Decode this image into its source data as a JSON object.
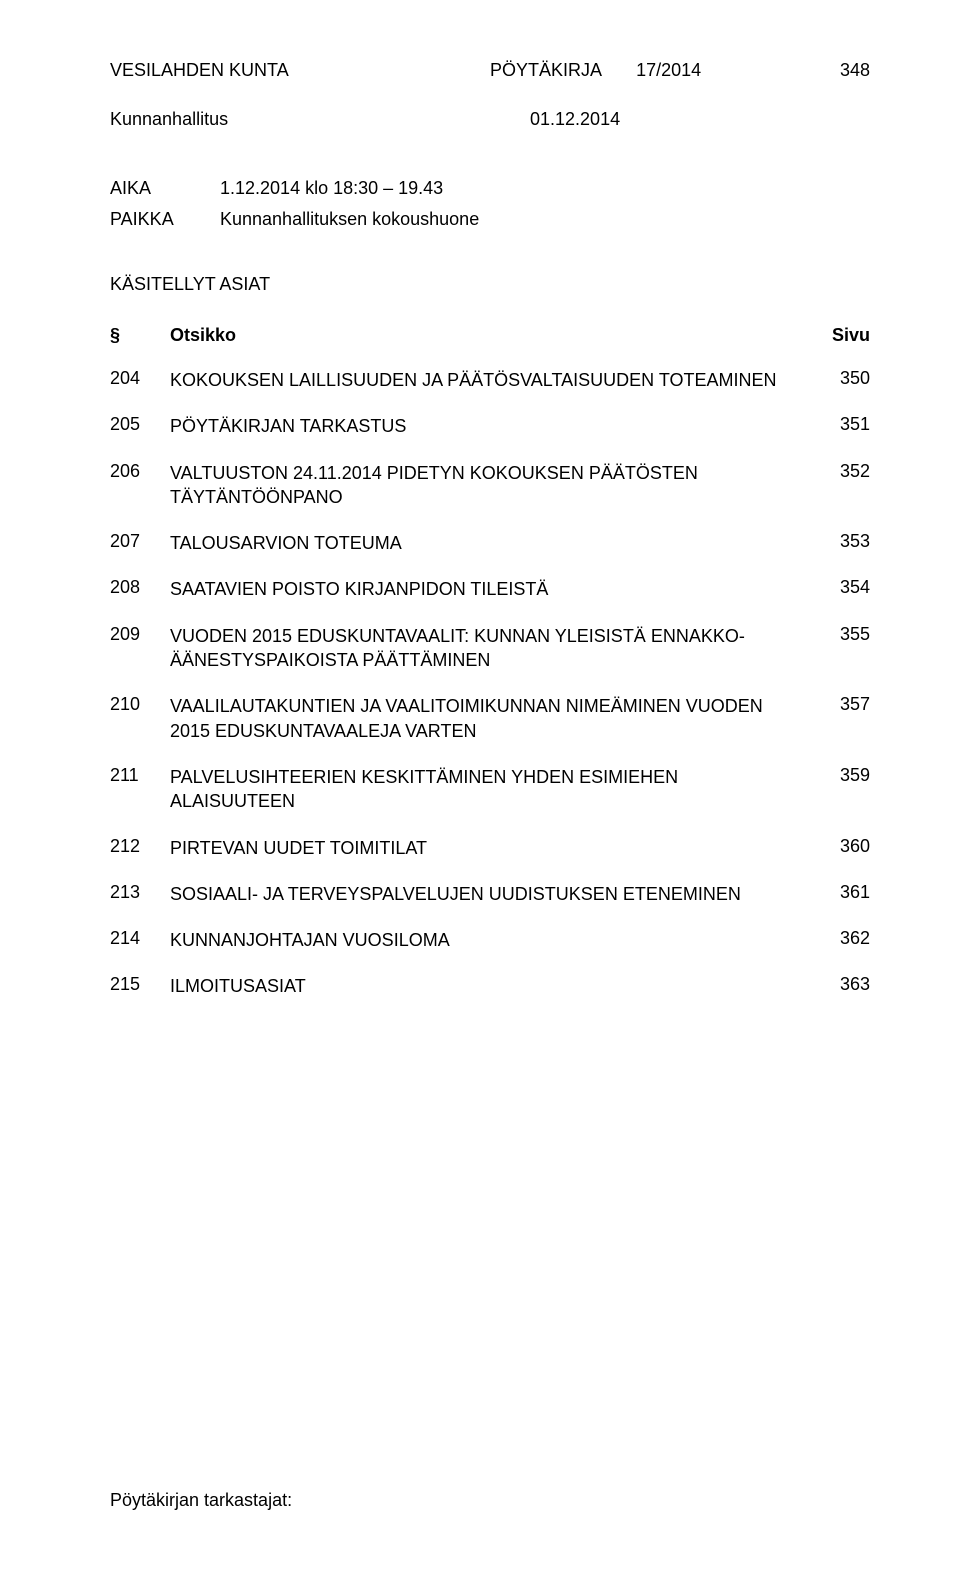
{
  "header": {
    "org": "VESILAHDEN KUNTA",
    "doc_type": "PÖYTÄKIRJA",
    "doc_number": "17/2014",
    "page_number": "348"
  },
  "sub_header": {
    "body": "Kunnanhallitus",
    "date": "01.12.2014"
  },
  "aika": {
    "label": "AIKA",
    "value": "1.12.2014 klo 18:30 – 19.43"
  },
  "paikka": {
    "label": "PAIKKA",
    "value": "Kunnanhallituksen kokoushuone"
  },
  "section_title": "KÄSITELLYT ASIAT",
  "columns": {
    "num": "§",
    "title": "Otsikko",
    "page": "Sivu"
  },
  "items": [
    {
      "num": "204",
      "title": "KOKOUKSEN LAILLISUUDEN JA PÄÄTÖSVALTAISUUDEN TOTEAMINEN",
      "page": "350"
    },
    {
      "num": "205",
      "title": "PÖYTÄKIRJAN TARKASTUS",
      "page": "351"
    },
    {
      "num": "206",
      "title": "VALTUUSTON 24.11.2014 PIDETYN KOKOUKSEN PÄÄTÖSTEN TÄYTÄNTÖÖNPANO",
      "page": "352"
    },
    {
      "num": "207",
      "title": "TALOUSARVION TOTEUMA",
      "page": "353"
    },
    {
      "num": "208",
      "title": "SAATAVIEN POISTO KIRJANPIDON TILEISTÄ",
      "page": "354"
    },
    {
      "num": "209",
      "title": "VUODEN 2015 EDUSKUNTAVAALIT: KUNNAN YLEISISTÄ ENNAKKO-ÄÄNESTYSPAIKOISTA PÄÄTTÄMINEN",
      "page": "355"
    },
    {
      "num": "210",
      "title": "VAALILAUTAKUNTIEN JA VAALITOIMIKUNNAN NIMEÄMINEN VUODEN 2015 EDUSKUNTAVAALEJA VARTEN",
      "page": "357"
    },
    {
      "num": "211",
      "title": "PALVELUSIHTEERIEN KESKITTÄMINEN YHDEN ESIMIEHEN ALAISUUTEEN",
      "page": "359"
    },
    {
      "num": "212",
      "title": "PIRTEVAN UUDET TOIMITILAT",
      "page": "360"
    },
    {
      "num": "213",
      "title": "SOSIAALI- JA TERVEYSPALVELUJEN UUDISTUKSEN ETENEMINEN",
      "page": "361"
    },
    {
      "num": "214",
      "title": "KUNNANJOHTAJAN VUOSILOMA",
      "page": "362"
    },
    {
      "num": "215",
      "title": "ILMOITUSASIAT",
      "page": "363"
    }
  ],
  "footer": "Pöytäkirjan tarkastajat:"
}
